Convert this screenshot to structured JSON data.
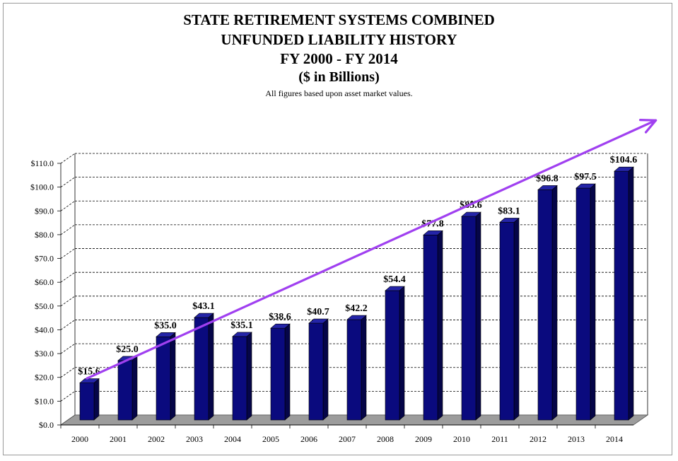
{
  "chart_data": {
    "type": "bar",
    "title": "STATE RETIREMENT SYSTEMS COMBINED",
    "subtitle_lines": [
      "UNFUNDED LIABILITY HISTORY",
      "FY 2000 - FY 2014",
      "($ in Billions)"
    ],
    "note": "All figures based upon asset market values.",
    "categories": [
      "2000",
      "2001",
      "2002",
      "2003",
      "2004",
      "2005",
      "2006",
      "2007",
      "2008",
      "2009",
      "2010",
      "2011",
      "2012",
      "2013",
      "2014"
    ],
    "values": [
      15.6,
      25.0,
      35.0,
      43.1,
      35.1,
      38.6,
      40.7,
      42.2,
      54.4,
      77.8,
      85.6,
      83.1,
      96.8,
      97.5,
      104.6
    ],
    "data_labels": [
      "$15.6",
      "$25.0",
      "$35.0",
      "$43.1",
      "$35.1",
      "$38.6",
      "$40.7",
      "$42.2",
      "$54.4",
      "$77.8",
      "$85.6",
      "$83.1",
      "$96.8",
      "$97.5",
      "$104.6"
    ],
    "ylim": [
      0,
      110
    ],
    "yticks": [
      0,
      10,
      20,
      30,
      40,
      50,
      60,
      70,
      80,
      90,
      100,
      110
    ],
    "ytick_labels": [
      "$0.0",
      "$10.0",
      "$20.0",
      "$30.0",
      "$40.0",
      "$50.0",
      "$60.0",
      "$70.0",
      "$80.0",
      "$90.0",
      "$100.0",
      "$110.0"
    ],
    "xlabel": "",
    "ylabel": "",
    "grid": true,
    "trend_line": {
      "start": [
        2000,
        17.5
      ],
      "end": [
        2014.9,
        126
      ],
      "color": "#a040f0"
    },
    "colors": {
      "bar_front": "#0a0a7e",
      "bar_side": "#050548",
      "bar_top": "#2424a8",
      "floor": "#9c9c9c",
      "grid": "#000000"
    }
  }
}
